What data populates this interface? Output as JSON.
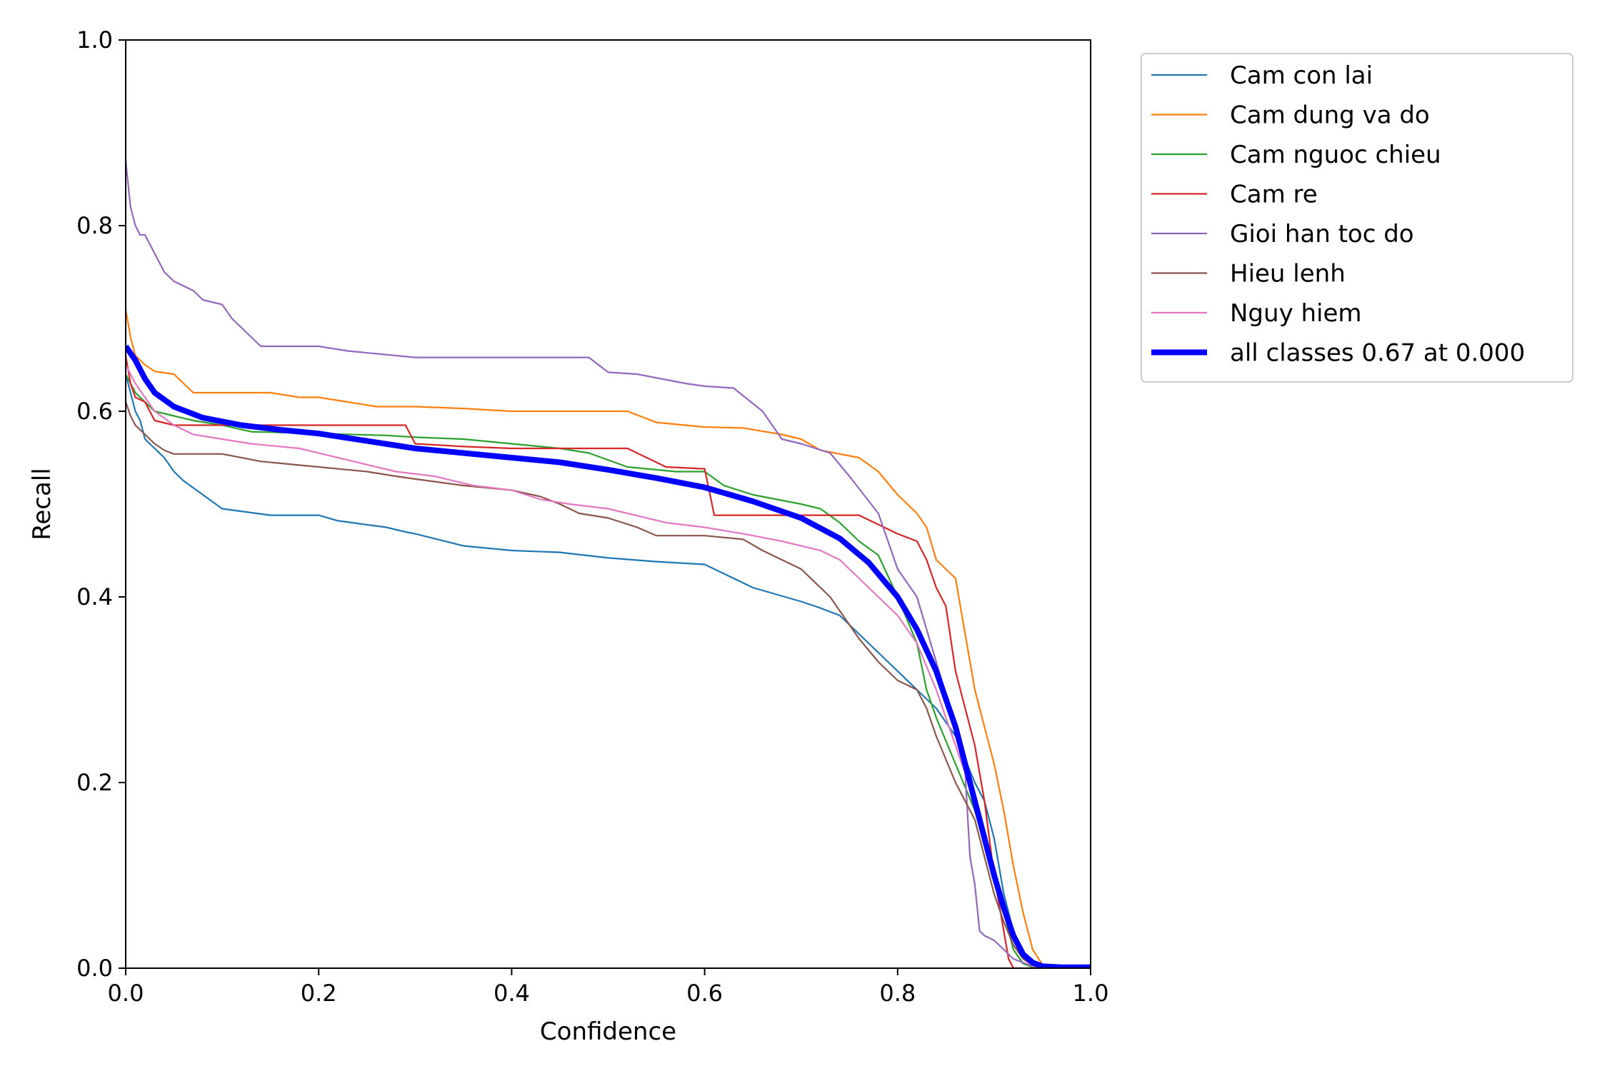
{
  "chart_data": {
    "type": "line",
    "title": "",
    "xlabel": "Confidence",
    "ylabel": "Recall",
    "xlim": [
      0,
      1
    ],
    "ylim": [
      0,
      1
    ],
    "xticks": [
      "0.0",
      "0.2",
      "0.4",
      "0.6",
      "0.8",
      "1.0"
    ],
    "yticks": [
      "0.0",
      "0.2",
      "0.4",
      "0.6",
      "0.8",
      "1.0"
    ],
    "grid": false,
    "legend_position": "outside-top-right",
    "series": [
      {
        "name": "Cam con lai",
        "color": "#1f77b4",
        "x": [
          0,
          0.005,
          0.01,
          0.015,
          0.02,
          0.03,
          0.04,
          0.05,
          0.06,
          0.08,
          0.1,
          0.15,
          0.2,
          0.22,
          0.27,
          0.29,
          0.3,
          0.35,
          0.4,
          0.45,
          0.5,
          0.55,
          0.6,
          0.62,
          0.65,
          0.7,
          0.72,
          0.74,
          0.75,
          0.76,
          0.78,
          0.8,
          0.82,
          0.84,
          0.86,
          0.88,
          0.89,
          0.9,
          0.91,
          0.92,
          0.93,
          0.94,
          0.95,
          1
        ],
        "y": [
          0.64,
          0.62,
          0.6,
          0.59,
          0.57,
          0.56,
          0.55,
          0.535,
          0.525,
          0.51,
          0.495,
          0.488,
          0.488,
          0.482,
          0.475,
          0.47,
          0.468,
          0.455,
          0.45,
          0.448,
          0.442,
          0.438,
          0.435,
          0.425,
          0.41,
          0.395,
          0.388,
          0.38,
          0.37,
          0.36,
          0.34,
          0.32,
          0.3,
          0.28,
          0.25,
          0.2,
          0.18,
          0.14,
          0.08,
          0.04,
          0.015,
          0.004,
          0.001,
          0
        ]
      },
      {
        "name": "Cam dung va do",
        "color": "#ff7f0e",
        "x": [
          0,
          0.005,
          0.01,
          0.02,
          0.03,
          0.05,
          0.06,
          0.07,
          0.1,
          0.15,
          0.18,
          0.2,
          0.23,
          0.26,
          0.3,
          0.35,
          0.4,
          0.45,
          0.5,
          0.52,
          0.55,
          0.6,
          0.64,
          0.68,
          0.7,
          0.72,
          0.76,
          0.78,
          0.8,
          0.82,
          0.83,
          0.84,
          0.85,
          0.86,
          0.87,
          0.88,
          0.89,
          0.9,
          0.91,
          0.92,
          0.93,
          0.94,
          0.95,
          0.96,
          1
        ],
        "y": [
          0.71,
          0.68,
          0.66,
          0.65,
          0.643,
          0.64,
          0.63,
          0.62,
          0.62,
          0.62,
          0.615,
          0.615,
          0.61,
          0.605,
          0.605,
          0.603,
          0.6,
          0.6,
          0.6,
          0.6,
          0.588,
          0.583,
          0.582,
          0.575,
          0.57,
          0.558,
          0.55,
          0.535,
          0.51,
          0.49,
          0.475,
          0.44,
          0.43,
          0.42,
          0.36,
          0.3,
          0.26,
          0.22,
          0.17,
          0.11,
          0.06,
          0.02,
          0.004,
          0.001,
          0
        ]
      },
      {
        "name": "Cam nguoc chieu",
        "color": "#2ca02c",
        "x": [
          0,
          0.005,
          0.01,
          0.02,
          0.03,
          0.05,
          0.07,
          0.1,
          0.13,
          0.2,
          0.27,
          0.3,
          0.35,
          0.4,
          0.45,
          0.48,
          0.52,
          0.57,
          0.6,
          0.62,
          0.65,
          0.7,
          0.72,
          0.74,
          0.76,
          0.78,
          0.8,
          0.82,
          0.83,
          0.84,
          0.86,
          0.88,
          0.9,
          0.91,
          0.92,
          0.93,
          0.94,
          0.95,
          1
        ],
        "y": [
          0.64,
          0.63,
          0.62,
          0.61,
          0.6,
          0.595,
          0.59,
          0.585,
          0.578,
          0.576,
          0.574,
          0.572,
          0.57,
          0.565,
          0.56,
          0.555,
          0.54,
          0.535,
          0.535,
          0.52,
          0.51,
          0.5,
          0.495,
          0.48,
          0.46,
          0.445,
          0.4,
          0.35,
          0.3,
          0.27,
          0.22,
          0.17,
          0.1,
          0.06,
          0.02,
          0.005,
          0.001,
          0,
          0
        ]
      },
      {
        "name": "Cam re",
        "color": "#d62728",
        "x": [
          0,
          0.005,
          0.01,
          0.02,
          0.025,
          0.03,
          0.05,
          0.1,
          0.2,
          0.29,
          0.3,
          0.35,
          0.4,
          0.45,
          0.5,
          0.52,
          0.56,
          0.6,
          0.61,
          0.65,
          0.7,
          0.76,
          0.78,
          0.8,
          0.82,
          0.83,
          0.84,
          0.85,
          0.86,
          0.87,
          0.88,
          0.89,
          0.9,
          0.91,
          0.915,
          0.92,
          0.93,
          0.95,
          1
        ],
        "y": [
          0.66,
          0.63,
          0.615,
          0.61,
          0.6,
          0.59,
          0.585,
          0.585,
          0.585,
          0.585,
          0.565,
          0.562,
          0.56,
          0.56,
          0.56,
          0.56,
          0.54,
          0.538,
          0.488,
          0.488,
          0.488,
          0.488,
          0.478,
          0.468,
          0.46,
          0.44,
          0.41,
          0.39,
          0.32,
          0.28,
          0.24,
          0.18,
          0.1,
          0.04,
          0.01,
          0,
          0,
          0,
          0
        ]
      },
      {
        "name": "Gioi han toc do",
        "color": "#9467bd",
        "x": [
          0,
          0.003,
          0.005,
          0.01,
          0.015,
          0.02,
          0.025,
          0.03,
          0.04,
          0.05,
          0.06,
          0.07,
          0.08,
          0.1,
          0.11,
          0.12,
          0.14,
          0.2,
          0.23,
          0.3,
          0.4,
          0.45,
          0.48,
          0.49,
          0.5,
          0.53,
          0.58,
          0.6,
          0.63,
          0.66,
          0.68,
          0.7,
          0.73,
          0.75,
          0.78,
          0.8,
          0.82,
          0.84,
          0.86,
          0.87,
          0.875,
          0.88,
          0.885,
          0.89,
          0.9,
          0.91,
          0.92,
          0.94,
          1
        ],
        "y": [
          0.87,
          0.84,
          0.82,
          0.8,
          0.79,
          0.79,
          0.78,
          0.77,
          0.75,
          0.74,
          0.735,
          0.73,
          0.72,
          0.715,
          0.7,
          0.69,
          0.67,
          0.67,
          0.665,
          0.658,
          0.658,
          0.658,
          0.658,
          0.65,
          0.642,
          0.64,
          0.63,
          0.627,
          0.625,
          0.6,
          0.57,
          0.565,
          0.555,
          0.53,
          0.49,
          0.43,
          0.4,
          0.33,
          0.26,
          0.21,
          0.12,
          0.09,
          0.04,
          0.035,
          0.03,
          0.02,
          0.01,
          0.002,
          0
        ]
      },
      {
        "name": "Hieu lenh",
        "color": "#8c564b",
        "x": [
          0,
          0.005,
          0.01,
          0.02,
          0.03,
          0.04,
          0.05,
          0.1,
          0.14,
          0.2,
          0.25,
          0.28,
          0.3,
          0.35,
          0.4,
          0.43,
          0.45,
          0.47,
          0.5,
          0.53,
          0.55,
          0.6,
          0.64,
          0.66,
          0.7,
          0.73,
          0.75,
          0.76,
          0.78,
          0.8,
          0.82,
          0.83,
          0.84,
          0.86,
          0.88,
          0.89,
          0.9,
          0.91,
          0.92,
          0.93,
          0.94,
          0.95,
          1
        ],
        "y": [
          0.61,
          0.595,
          0.585,
          0.575,
          0.565,
          0.558,
          0.554,
          0.554,
          0.546,
          0.54,
          0.535,
          0.53,
          0.527,
          0.52,
          0.515,
          0.508,
          0.5,
          0.49,
          0.485,
          0.475,
          0.466,
          0.466,
          0.462,
          0.45,
          0.43,
          0.4,
          0.37,
          0.355,
          0.33,
          0.31,
          0.3,
          0.28,
          0.25,
          0.2,
          0.16,
          0.12,
          0.08,
          0.05,
          0.025,
          0.01,
          0.003,
          0.001,
          0
        ]
      },
      {
        "name": "Nguy hiem",
        "color": "#e377c2",
        "x": [
          0,
          0.005,
          0.01,
          0.02,
          0.03,
          0.05,
          0.07,
          0.1,
          0.13,
          0.18,
          0.22,
          0.28,
          0.32,
          0.36,
          0.4,
          0.43,
          0.46,
          0.5,
          0.52,
          0.56,
          0.6,
          0.64,
          0.68,
          0.7,
          0.72,
          0.74,
          0.76,
          0.78,
          0.8,
          0.82,
          0.84,
          0.86,
          0.88,
          0.9,
          0.91,
          0.92,
          0.93,
          0.94,
          0.95,
          1
        ],
        "y": [
          0.65,
          0.64,
          0.63,
          0.615,
          0.6,
          0.585,
          0.575,
          0.57,
          0.565,
          0.56,
          0.55,
          0.535,
          0.53,
          0.52,
          0.515,
          0.505,
          0.5,
          0.495,
          0.49,
          0.48,
          0.475,
          0.468,
          0.46,
          0.455,
          0.45,
          0.44,
          0.42,
          0.4,
          0.38,
          0.35,
          0.3,
          0.24,
          0.18,
          0.11,
          0.07,
          0.035,
          0.012,
          0.003,
          0.001,
          0
        ]
      },
      {
        "name": "all classes 0.67 at 0.000",
        "color": "#0000ff",
        "thick": true,
        "x": [
          0,
          0.01,
          0.02,
          0.03,
          0.05,
          0.08,
          0.12,
          0.16,
          0.2,
          0.25,
          0.3,
          0.35,
          0.4,
          0.45,
          0.5,
          0.55,
          0.6,
          0.65,
          0.7,
          0.74,
          0.77,
          0.8,
          0.82,
          0.84,
          0.86,
          0.87,
          0.88,
          0.89,
          0.9,
          0.91,
          0.92,
          0.93,
          0.94,
          0.95,
          0.97,
          1
        ],
        "y": [
          0.67,
          0.655,
          0.635,
          0.62,
          0.605,
          0.593,
          0.585,
          0.58,
          0.576,
          0.568,
          0.56,
          0.555,
          0.55,
          0.545,
          0.537,
          0.528,
          0.518,
          0.503,
          0.485,
          0.463,
          0.437,
          0.4,
          0.365,
          0.32,
          0.26,
          0.22,
          0.18,
          0.14,
          0.1,
          0.065,
          0.035,
          0.015,
          0.006,
          0.002,
          0.001,
          0.001
        ]
      }
    ]
  }
}
